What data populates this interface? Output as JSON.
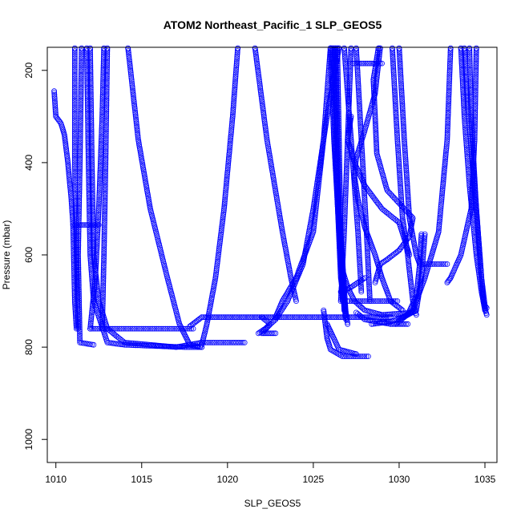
{
  "chart_data": {
    "type": "scatter",
    "title": "ATOM2 Northeast_Pacific_1 SLP_GEOS5",
    "xlabel": "SLP_GEOS5",
    "ylabel": "Pressure (mbar)",
    "xlim": [
      1009.5,
      1035.7
    ],
    "ylim": [
      1050,
      150
    ],
    "y_reversed": true,
    "grid": false,
    "legend": "none",
    "marker": "open-circle",
    "color": "#0000ff",
    "xticks": [
      1010,
      1015,
      1020,
      1025,
      1030,
      1035
    ],
    "yticks": [
      200,
      400,
      600,
      800,
      1000
    ],
    "series": [
      {
        "points": [
          [
            1009.9,
            245
          ],
          [
            1010.0,
            300
          ],
          [
            1010.3,
            315
          ],
          [
            1010.5,
            340
          ],
          [
            1010.7,
            400
          ],
          [
            1010.9,
            480
          ],
          [
            1011.0,
            535
          ],
          [
            1011.1,
            700
          ],
          [
            1011.2,
            760
          ]
        ]
      },
      {
        "points": [
          [
            1011.1,
            150
          ],
          [
            1011.1,
            400
          ],
          [
            1011.2,
            600
          ],
          [
            1011.3,
            760
          ]
        ]
      },
      {
        "points": [
          [
            1011.0,
            535
          ],
          [
            1012.5,
            535
          ]
        ]
      },
      {
        "points": [
          [
            1011.5,
            150
          ],
          [
            1011.4,
            400
          ],
          [
            1011.3,
            600
          ],
          [
            1011.4,
            790
          ],
          [
            1012.2,
            795
          ]
        ]
      },
      {
        "points": [
          [
            1011.8,
            150
          ],
          [
            1011.9,
            400
          ],
          [
            1012.0,
            600
          ],
          [
            1012.2,
            700
          ],
          [
            1013.0,
            790
          ],
          [
            1014.0,
            795
          ],
          [
            1017.5,
            800
          ],
          [
            1018.5,
            800
          ]
        ]
      },
      {
        "points": [
          [
            1012.0,
            150
          ],
          [
            1012.1,
            400
          ],
          [
            1012.2,
            600
          ],
          [
            1012.5,
            700
          ],
          [
            1013.0,
            760
          ]
        ]
      },
      {
        "points": [
          [
            1012.8,
            150
          ],
          [
            1012.7,
            300
          ],
          [
            1012.5,
            500
          ],
          [
            1012.3,
            650
          ],
          [
            1012.0,
            760
          ]
        ]
      },
      {
        "points": [
          [
            1013.0,
            150
          ],
          [
            1012.9,
            400
          ],
          [
            1012.8,
            600
          ],
          [
            1012.7,
            760
          ]
        ]
      },
      {
        "points": [
          [
            1014.2,
            150
          ],
          [
            1014.8,
            350
          ],
          [
            1015.5,
            500
          ],
          [
            1016.5,
            650
          ],
          [
            1017.2,
            750
          ],
          [
            1017.8,
            795
          ],
          [
            1018.5,
            800
          ]
        ]
      },
      {
        "points": [
          [
            1020.6,
            150
          ],
          [
            1020.3,
            300
          ],
          [
            1019.8,
            500
          ],
          [
            1019.3,
            650
          ],
          [
            1018.8,
            750
          ],
          [
            1018.5,
            795
          ]
        ]
      },
      {
        "points": [
          [
            1012.0,
            760
          ],
          [
            1018.0,
            760
          ]
        ]
      },
      {
        "points": [
          [
            1017.8,
            755
          ],
          [
            1018.5,
            735
          ],
          [
            1022.5,
            735
          ],
          [
            1028.5,
            735
          ],
          [
            1029.5,
            735
          ]
        ]
      },
      {
        "points": [
          [
            1013.0,
            760
          ],
          [
            1014.0,
            790
          ],
          [
            1017.0,
            800
          ],
          [
            1018.5,
            790
          ],
          [
            1020.2,
            790
          ],
          [
            1021.0,
            790
          ]
        ]
      },
      {
        "points": [
          [
            1021.6,
            150
          ],
          [
            1022.3,
            350
          ],
          [
            1023.2,
            550
          ],
          [
            1023.7,
            650
          ],
          [
            1024.0,
            700
          ]
        ]
      },
      {
        "points": [
          [
            1026.5,
            150
          ],
          [
            1025.8,
            300
          ],
          [
            1025.0,
            500
          ],
          [
            1024.4,
            620
          ],
          [
            1023.5,
            700
          ],
          [
            1022.8,
            740
          ],
          [
            1022.2,
            760
          ],
          [
            1021.8,
            770
          ]
        ]
      },
      {
        "points": [
          [
            1022.0,
            735
          ],
          [
            1022.5,
            750
          ],
          [
            1022.0,
            770
          ],
          [
            1022.8,
            770
          ]
        ]
      },
      {
        "points": [
          [
            1026.0,
            150
          ],
          [
            1025.6,
            350
          ],
          [
            1025.0,
            550
          ],
          [
            1024.0,
            650
          ],
          [
            1023.2,
            700
          ],
          [
            1022.8,
            735
          ]
        ]
      },
      {
        "points": [
          [
            1025.6,
            720
          ],
          [
            1025.8,
            780
          ],
          [
            1026.0,
            805
          ],
          [
            1026.7,
            820
          ],
          [
            1028.2,
            820
          ]
        ]
      },
      {
        "points": [
          [
            1025.8,
            750
          ],
          [
            1026.5,
            805
          ],
          [
            1027.5,
            815
          ]
        ]
      },
      {
        "points": [
          [
            1026.0,
            150
          ],
          [
            1026.2,
            350
          ],
          [
            1026.5,
            550
          ],
          [
            1026.8,
            700
          ],
          [
            1027.0,
            750
          ]
        ]
      },
      {
        "points": [
          [
            1026.1,
            150
          ],
          [
            1026.3,
            400
          ],
          [
            1026.6,
            650
          ],
          [
            1026.9,
            740
          ]
        ]
      },
      {
        "points": [
          [
            1026.2,
            150
          ],
          [
            1026.4,
            450
          ],
          [
            1026.7,
            700
          ]
        ]
      },
      {
        "points": [
          [
            1026.3,
            150
          ],
          [
            1026.5,
            500
          ],
          [
            1026.8,
            720
          ]
        ]
      },
      {
        "points": [
          [
            1026.4,
            150
          ],
          [
            1026.6,
            550
          ],
          [
            1026.9,
            730
          ]
        ]
      },
      {
        "points": [
          [
            1026.8,
            150
          ],
          [
            1027.2,
            350
          ],
          [
            1027.6,
            550
          ],
          [
            1027.8,
            680
          ]
        ]
      },
      {
        "points": [
          [
            1027.2,
            150
          ],
          [
            1027.0,
            350
          ],
          [
            1026.8,
            550
          ],
          [
            1026.6,
            700
          ]
        ]
      },
      {
        "points": [
          [
            1027.5,
            150
          ],
          [
            1027.8,
            350
          ],
          [
            1028.1,
            550
          ],
          [
            1028.3,
            700
          ]
        ]
      },
      {
        "points": [
          [
            1027.3,
            185
          ],
          [
            1029.0,
            185
          ]
        ]
      },
      {
        "points": [
          [
            1028.9,
            150
          ],
          [
            1028.6,
            250
          ],
          [
            1028.0,
            330
          ],
          [
            1027.5,
            390
          ],
          [
            1027.4,
            430
          ],
          [
            1027.6,
            480
          ],
          [
            1028.0,
            540
          ],
          [
            1028.6,
            600
          ],
          [
            1029.0,
            650
          ],
          [
            1029.5,
            700
          ],
          [
            1030.2,
            720
          ]
        ]
      },
      {
        "points": [
          [
            1028.8,
            150
          ],
          [
            1028.5,
            220
          ],
          [
            1028.6,
            300
          ],
          [
            1028.7,
            380
          ],
          [
            1029.3,
            460
          ],
          [
            1030.3,
            500
          ],
          [
            1030.8,
            520
          ],
          [
            1030.6,
            560
          ],
          [
            1030.0,
            590
          ],
          [
            1029.3,
            610
          ],
          [
            1028.9,
            620
          ],
          [
            1028.6,
            660
          ]
        ]
      },
      {
        "points": [
          [
            1027.2,
            300
          ],
          [
            1027.0,
            350
          ],
          [
            1027.4,
            400
          ],
          [
            1028.0,
            450
          ],
          [
            1029.0,
            500
          ],
          [
            1030.0,
            530
          ],
          [
            1030.6,
            600
          ]
        ]
      },
      {
        "points": [
          [
            1026.6,
            620
          ],
          [
            1027.0,
            670
          ],
          [
            1027.4,
            700
          ],
          [
            1028.0,
            720
          ],
          [
            1029.0,
            730
          ],
          [
            1030.8,
            725
          ]
        ]
      },
      {
        "points": [
          [
            1026.6,
            680
          ],
          [
            1027.2,
            670
          ],
          [
            1028.0,
            650
          ]
        ]
      },
      {
        "points": [
          [
            1027.0,
            700
          ],
          [
            1029.9,
            700
          ]
        ]
      },
      {
        "points": [
          [
            1027.5,
            725
          ],
          [
            1028.0,
            740
          ],
          [
            1029.5,
            750
          ],
          [
            1030.5,
            750
          ]
        ]
      },
      {
        "points": [
          [
            1030.0,
            150
          ],
          [
            1030.3,
            350
          ],
          [
            1030.6,
            520
          ],
          [
            1031.0,
            600
          ],
          [
            1031.2,
            620
          ],
          [
            1032.8,
            620
          ]
        ]
      },
      {
        "points": [
          [
            1029.6,
            150
          ],
          [
            1029.9,
            350
          ],
          [
            1030.2,
            520
          ],
          [
            1030.5,
            600
          ],
          [
            1030.8,
            700
          ],
          [
            1031.0,
            730
          ]
        ]
      },
      {
        "points": [
          [
            1031.3,
            555
          ],
          [
            1031.2,
            620
          ],
          [
            1031.0,
            690
          ],
          [
            1030.5,
            730
          ],
          [
            1029.5,
            745
          ],
          [
            1028.4,
            750
          ]
        ]
      },
      {
        "points": [
          [
            1031.5,
            555
          ],
          [
            1031.3,
            650
          ],
          [
            1031.0,
            720
          ],
          [
            1030.0,
            740
          ]
        ]
      },
      {
        "points": [
          [
            1033.0,
            150
          ],
          [
            1032.8,
            350
          ],
          [
            1032.3,
            550
          ],
          [
            1031.5,
            650
          ],
          [
            1030.8,
            720
          ],
          [
            1029.8,
            750
          ]
        ]
      },
      {
        "points": [
          [
            1033.6,
            150
          ],
          [
            1033.8,
            300
          ],
          [
            1034.1,
            450
          ],
          [
            1034.5,
            600
          ],
          [
            1034.8,
            680
          ],
          [
            1035.0,
            720
          ]
        ]
      },
      {
        "points": [
          [
            1033.8,
            150
          ],
          [
            1034.0,
            280
          ],
          [
            1034.4,
            450
          ],
          [
            1034.7,
            600
          ],
          [
            1034.9,
            700
          ],
          [
            1035.1,
            730
          ]
        ]
      },
      {
        "points": [
          [
            1034.5,
            150
          ],
          [
            1034.4,
            350
          ],
          [
            1034.2,
            500
          ],
          [
            1033.6,
            600
          ],
          [
            1033.0,
            650
          ],
          [
            1032.8,
            660
          ]
        ]
      },
      {
        "points": [
          [
            1034.1,
            150
          ],
          [
            1034.2,
            300
          ],
          [
            1034.5,
            500
          ],
          [
            1034.8,
            650
          ],
          [
            1035.0,
            710
          ],
          [
            1035.1,
            715
          ]
        ]
      }
    ]
  }
}
